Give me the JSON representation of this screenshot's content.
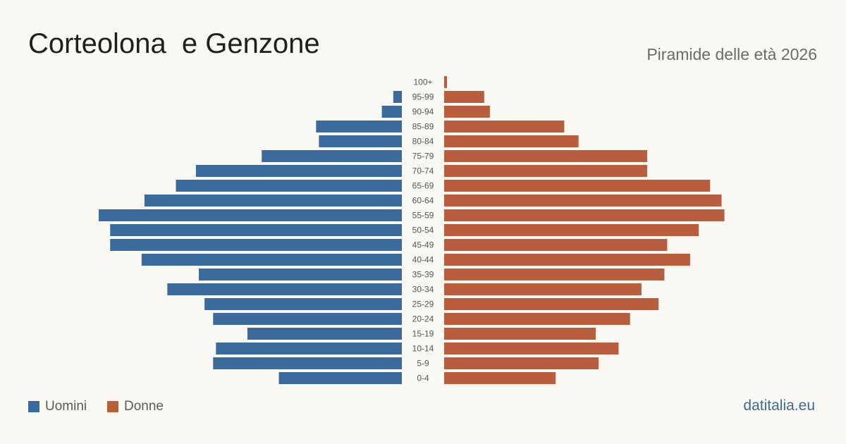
{
  "header": {
    "title": "Corteolona  e Genzone",
    "subtitle": "Piramide delle età 2026"
  },
  "legend": {
    "men_label": "Uomini",
    "women_label": "Donne"
  },
  "footer": {
    "source": "datitalia.eu"
  },
  "colors": {
    "men": "#3b6a9c",
    "women": "#b85d3d",
    "background": "#faf8f3"
  },
  "chart_data": {
    "type": "bar",
    "orientation": "horizontal-pyramid",
    "categories": [
      "100+",
      "95-99",
      "90-94",
      "85-89",
      "80-84",
      "75-79",
      "70-74",
      "65-69",
      "60-64",
      "55-59",
      "50-54",
      "45-49",
      "40-44",
      "35-39",
      "30-34",
      "25-29",
      "20-24",
      "15-19",
      "10-14",
      "5-9",
      "0-4"
    ],
    "series": [
      {
        "name": "Uomini",
        "values": [
          0,
          3,
          7,
          30,
          29,
          49,
          72,
          79,
          90,
          106,
          102,
          102,
          91,
          71,
          82,
          69,
          66,
          54,
          65,
          66,
          43
        ]
      },
      {
        "name": "Donne",
        "values": [
          1,
          14,
          16,
          42,
          47,
          71,
          71,
          93,
          97,
          98,
          89,
          78,
          86,
          77,
          69,
          75,
          65,
          53,
          61,
          54,
          39
        ]
      }
    ],
    "xlim": [
      0,
      106
    ]
  }
}
